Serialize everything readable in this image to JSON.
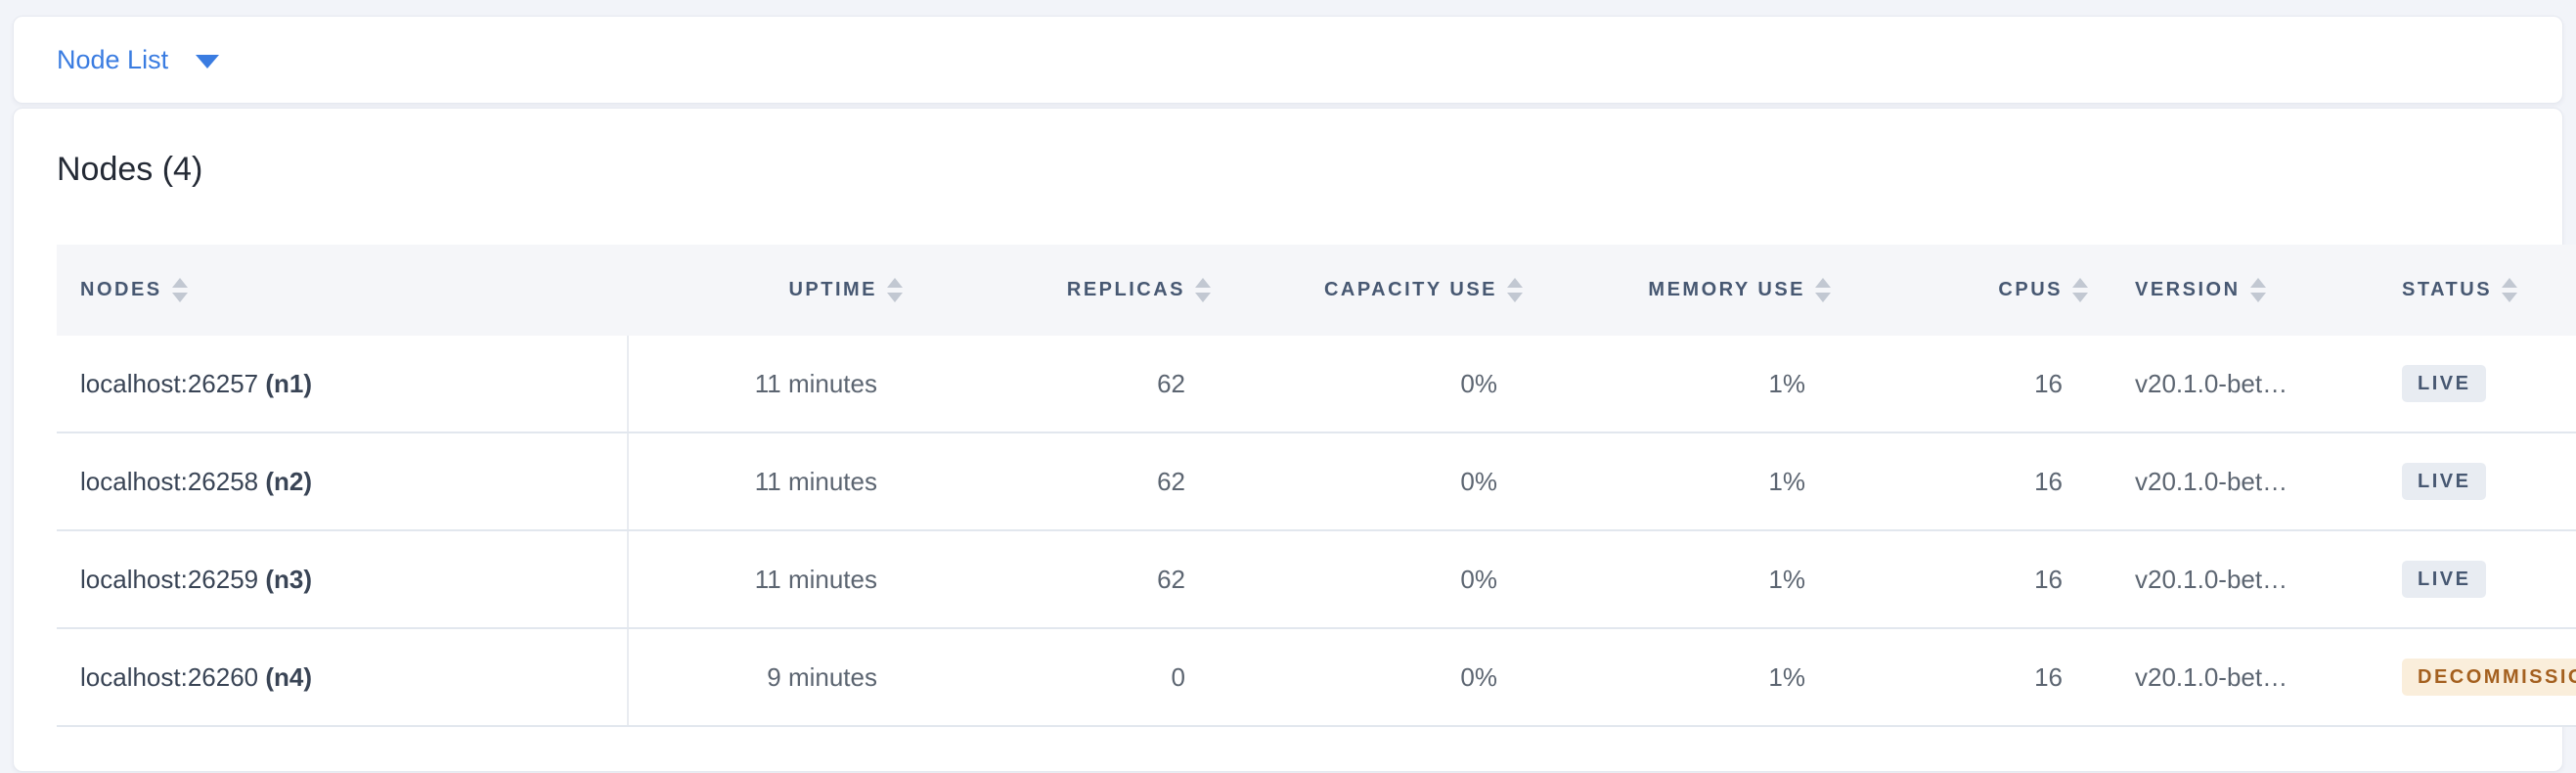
{
  "toolbar": {
    "view_dropdown_label": "Node List"
  },
  "card": {
    "title": "Nodes (4)"
  },
  "table": {
    "columns": [
      {
        "id": "nodes",
        "label": "NODES",
        "sortable": true
      },
      {
        "id": "uptime",
        "label": "UPTIME",
        "sortable": true
      },
      {
        "id": "replicas",
        "label": "REPLICAS",
        "sortable": true
      },
      {
        "id": "capacity_use",
        "label": "CAPACITY USE",
        "sortable": true
      },
      {
        "id": "memory_use",
        "label": "MEMORY USE",
        "sortable": true
      },
      {
        "id": "cpus",
        "label": "CPUS",
        "sortable": true
      },
      {
        "id": "version",
        "label": "VERSION",
        "sortable": true
      },
      {
        "id": "status",
        "label": "STATUS",
        "sortable": true
      }
    ],
    "rows": [
      {
        "node_address": "localhost:26257",
        "node_id": "(n1)",
        "uptime": "11 minutes",
        "replicas": "62",
        "capacity_use": "0%",
        "memory_use": "1%",
        "cpus": "16",
        "version": "v20.1.0-bet…",
        "status": {
          "label": "LIVE",
          "variant": "live"
        }
      },
      {
        "node_address": "localhost:26258",
        "node_id": "(n2)",
        "uptime": "11 minutes",
        "replicas": "62",
        "capacity_use": "0%",
        "memory_use": "1%",
        "cpus": "16",
        "version": "v20.1.0-bet…",
        "status": {
          "label": "LIVE",
          "variant": "live"
        }
      },
      {
        "node_address": "localhost:26259",
        "node_id": "(n3)",
        "uptime": "11 minutes",
        "replicas": "62",
        "capacity_use": "0%",
        "memory_use": "1%",
        "cpus": "16",
        "version": "v20.1.0-bet…",
        "status": {
          "label": "LIVE",
          "variant": "live"
        }
      },
      {
        "node_address": "localhost:26260",
        "node_id": "(n4)",
        "uptime": "9 minutes",
        "replicas": "0",
        "capacity_use": "0%",
        "memory_use": "1%",
        "cpus": "16",
        "version": "v20.1.0-bet…",
        "status": {
          "label": "DECOMMISSIONING",
          "variant": "decommissioning"
        }
      }
    ]
  },
  "colors": {
    "accent_blue": "#3a7ce1",
    "page_background": "#f2f4f9",
    "header_text": "#475872",
    "cell_text": "#5c6571",
    "node_text": "#394455",
    "title_text": "#242a35",
    "status_live_bg": "#e8ecf2",
    "status_live_text": "#475872",
    "status_decommissioning_bg": "#faeedb",
    "status_decommissioning_text": "#a4601f",
    "table_header_bg": "#f5f6f9",
    "row_border": "#e2e7ee"
  }
}
